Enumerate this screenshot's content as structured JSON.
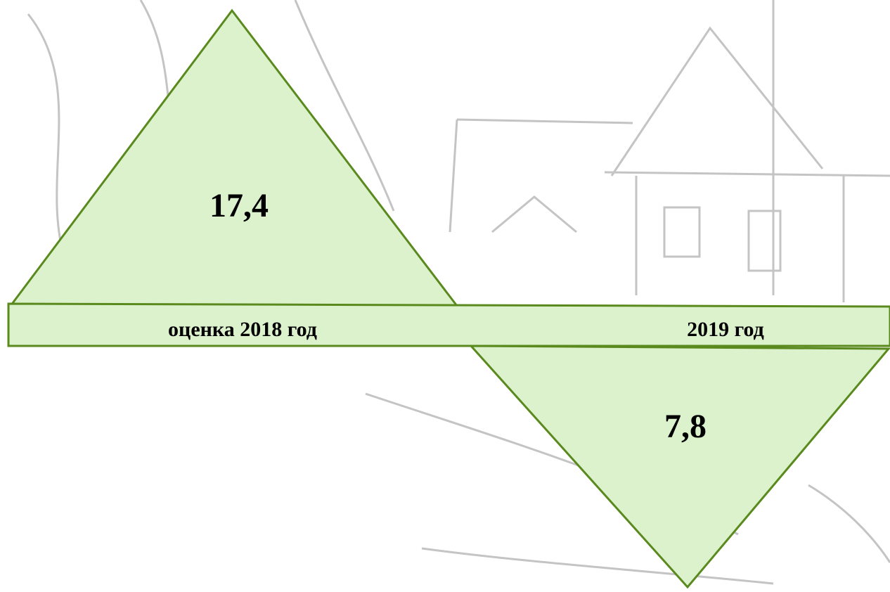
{
  "items": [
    {
      "label": "оценка 2018 год",
      "value": "17,4"
    },
    {
      "label": "2019 год",
      "value": "7,8"
    }
  ]
}
